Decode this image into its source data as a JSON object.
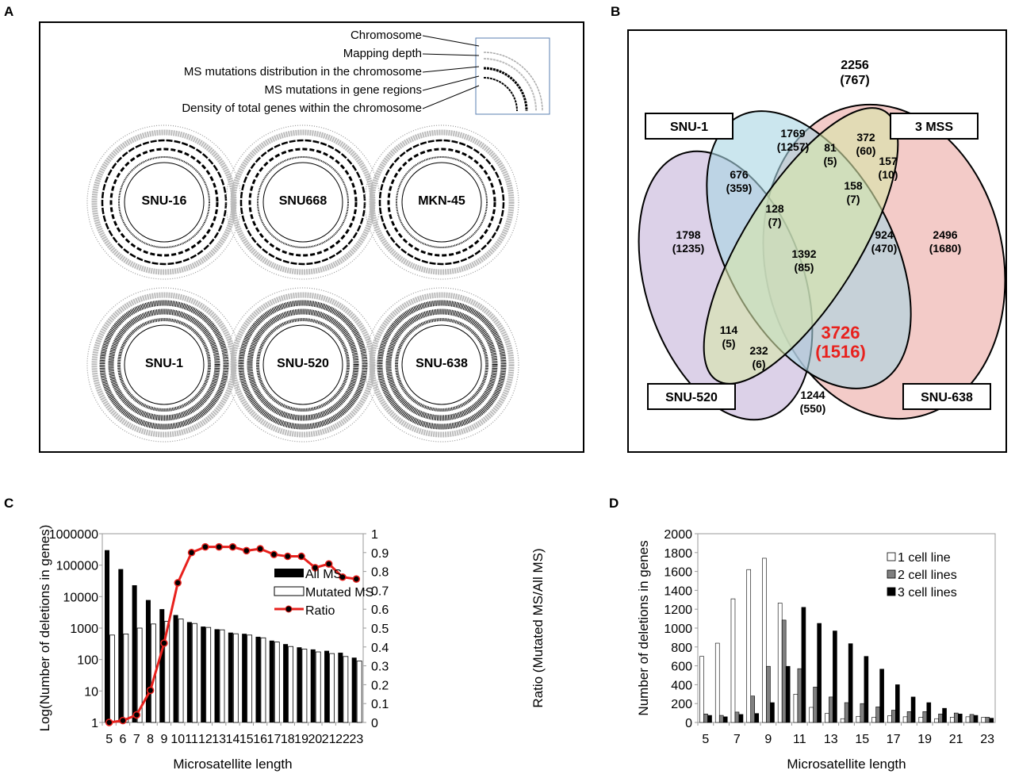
{
  "panels": {
    "a": "A",
    "b": "B",
    "c": "C",
    "d": "D"
  },
  "panel_a": {
    "legend": [
      "Chromosome",
      "Mapping depth",
      "MS mutations distribution in the chromosome",
      "MS mutations in gene regions",
      "Density of total genes within the chromosome"
    ],
    "cell_lines": [
      "SNU-16",
      "SNU668",
      "MKN-45",
      "SNU-1",
      "SNU-520",
      "SNU-638"
    ]
  },
  "panel_b": {
    "sets": [
      "SNU-1",
      "3 MSS",
      "SNU-520",
      "SNU-638"
    ],
    "colors": {
      "SNU-1": "#a9d6e3",
      "3 MSS": "#d7e6a8",
      "SNU-520": "#c5b3d9",
      "SNU-638": "#eba9a4"
    },
    "regions": [
      {
        "n": "2256",
        "p": "(767)"
      },
      {
        "n": "1769",
        "p": "(1257)"
      },
      {
        "n": "372",
        "p": "(60)"
      },
      {
        "n": "81",
        "p": "(5)"
      },
      {
        "n": "157",
        "p": "(10)"
      },
      {
        "n": "676",
        "p": "(359)"
      },
      {
        "n": "158",
        "p": "(7)"
      },
      {
        "n": "128",
        "p": "(7)"
      },
      {
        "n": "1798",
        "p": "(1235)"
      },
      {
        "n": "924",
        "p": "(470)"
      },
      {
        "n": "2496",
        "p": "(1680)"
      },
      {
        "n": "1392",
        "p": "(85)"
      },
      {
        "n": "114",
        "p": "(5)"
      },
      {
        "n": "232",
        "p": "(6)"
      },
      {
        "n": "3726",
        "p": "(1516)"
      },
      {
        "n": "1244",
        "p": "(550)"
      }
    ],
    "highlight_color": "#e8211d"
  },
  "chart_data": [
    {
      "type": "bar",
      "title": "",
      "xlabel": "Microsatellite length",
      "ylabel": "Log(Number of deletions in genes)",
      "y2label": "Ratio (Mutated MS/All MS)",
      "yscale": "log",
      "ylim": [
        1,
        1000000
      ],
      "y2lim": [
        0,
        1
      ],
      "categories": [
        "5",
        "6",
        "7",
        "8",
        "9",
        "10",
        "11",
        "12",
        "13",
        "14",
        "15",
        "16",
        "17",
        "18",
        "19",
        "20",
        "21",
        "22",
        "23"
      ],
      "yticks": [
        "1",
        "10",
        "100",
        "1000",
        "10000",
        "100000",
        "1000000"
      ],
      "y2ticks": [
        "0",
        "0.1",
        "0.2",
        "0.3",
        "0.4",
        "0.5",
        "0.6",
        "0.7",
        "0.8",
        "0.9",
        "1"
      ],
      "series": [
        {
          "name": "All MS",
          "kind": "bar",
          "color": "#000000",
          "values": [
            300000,
            75000,
            23000,
            7800,
            4000,
            2600,
            1550,
            1120,
            920,
            720,
            660,
            530,
            400,
            310,
            245,
            210,
            190,
            165,
            115
          ]
        },
        {
          "name": "Mutated MS",
          "kind": "bar",
          "color": "#ffffff",
          "values": [
            600,
            650,
            1000,
            1350,
            1650,
            1950,
            1400,
            1050,
            880,
            660,
            600,
            490,
            360,
            260,
            215,
            175,
            155,
            125,
            90
          ]
        },
        {
          "name": "Ratio",
          "kind": "line",
          "axis": "y2",
          "color": "#e8211d",
          "values": [
            0,
            0.01,
            0.04,
            0.17,
            0.42,
            0.74,
            0.9,
            0.93,
            0.93,
            0.93,
            0.91,
            0.92,
            0.89,
            0.88,
            0.88,
            0.82,
            0.84,
            0.77,
            0.76
          ]
        }
      ],
      "legend": "top-center"
    },
    {
      "type": "bar",
      "title": "",
      "xlabel": "Microsatellite length",
      "ylabel": "Number of deletions in genes",
      "ylim": [
        0,
        2000
      ],
      "categories": [
        "5",
        "6",
        "7",
        "8",
        "9",
        "10",
        "11",
        "12",
        "13",
        "14",
        "15",
        "16",
        "17",
        "18",
        "19",
        "20",
        "21",
        "22",
        "23"
      ],
      "xticks": [
        "5",
        "7",
        "9",
        "11",
        "13",
        "15",
        "17",
        "19",
        "21",
        "23"
      ],
      "yticks": [
        "0",
        "200",
        "400",
        "600",
        "800",
        "1000",
        "1200",
        "1400",
        "1600",
        "1800",
        "2000"
      ],
      "series": [
        {
          "name": "1 cell line",
          "color": "#ffffff",
          "values": [
            700,
            840,
            1310,
            1620,
            1740,
            1265,
            300,
            160,
            95,
            40,
            65,
            55,
            70,
            60,
            55,
            40,
            55,
            60,
            55
          ]
        },
        {
          "name": "2 cell lines",
          "color": "#808080",
          "values": [
            90,
            75,
            110,
            280,
            595,
            1085,
            570,
            375,
            270,
            210,
            200,
            165,
            130,
            115,
            115,
            90,
            100,
            85,
            55
          ]
        },
        {
          "name": "3 cell lines",
          "color": "#000000",
          "values": [
            75,
            60,
            85,
            95,
            210,
            595,
            1220,
            1050,
            970,
            835,
            700,
            565,
            400,
            270,
            210,
            150,
            90,
            75,
            45
          ]
        }
      ],
      "legend": "top-right"
    }
  ]
}
